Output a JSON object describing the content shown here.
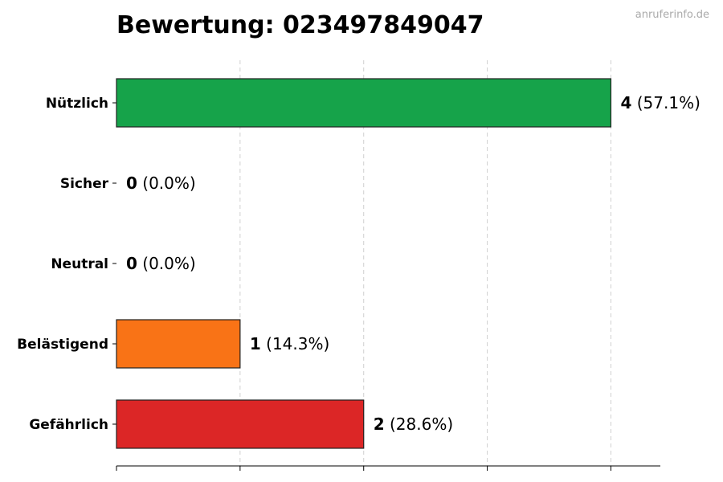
{
  "watermark": "anruferinfo.de",
  "chart_data": {
    "type": "bar",
    "orientation": "horizontal",
    "title": "Bewertung: 023497849047",
    "xlabel": "",
    "ylabel": "",
    "xlim": [
      0,
      4.4
    ],
    "grid": "vertical dashed",
    "categories": [
      "Nützlich",
      "Sicher",
      "Neutral",
      "Belästigend",
      "Gefährlich"
    ],
    "values": [
      4,
      0,
      0,
      1,
      2
    ],
    "percent_labels": [
      "(57.1%)",
      "(0.0%)",
      "(0.0%)",
      "(14.3%)",
      "(28.6%)"
    ],
    "colors": [
      "#16a34a",
      "#2563eb",
      "#6b7280",
      "#f97316",
      "#dc2626"
    ]
  }
}
